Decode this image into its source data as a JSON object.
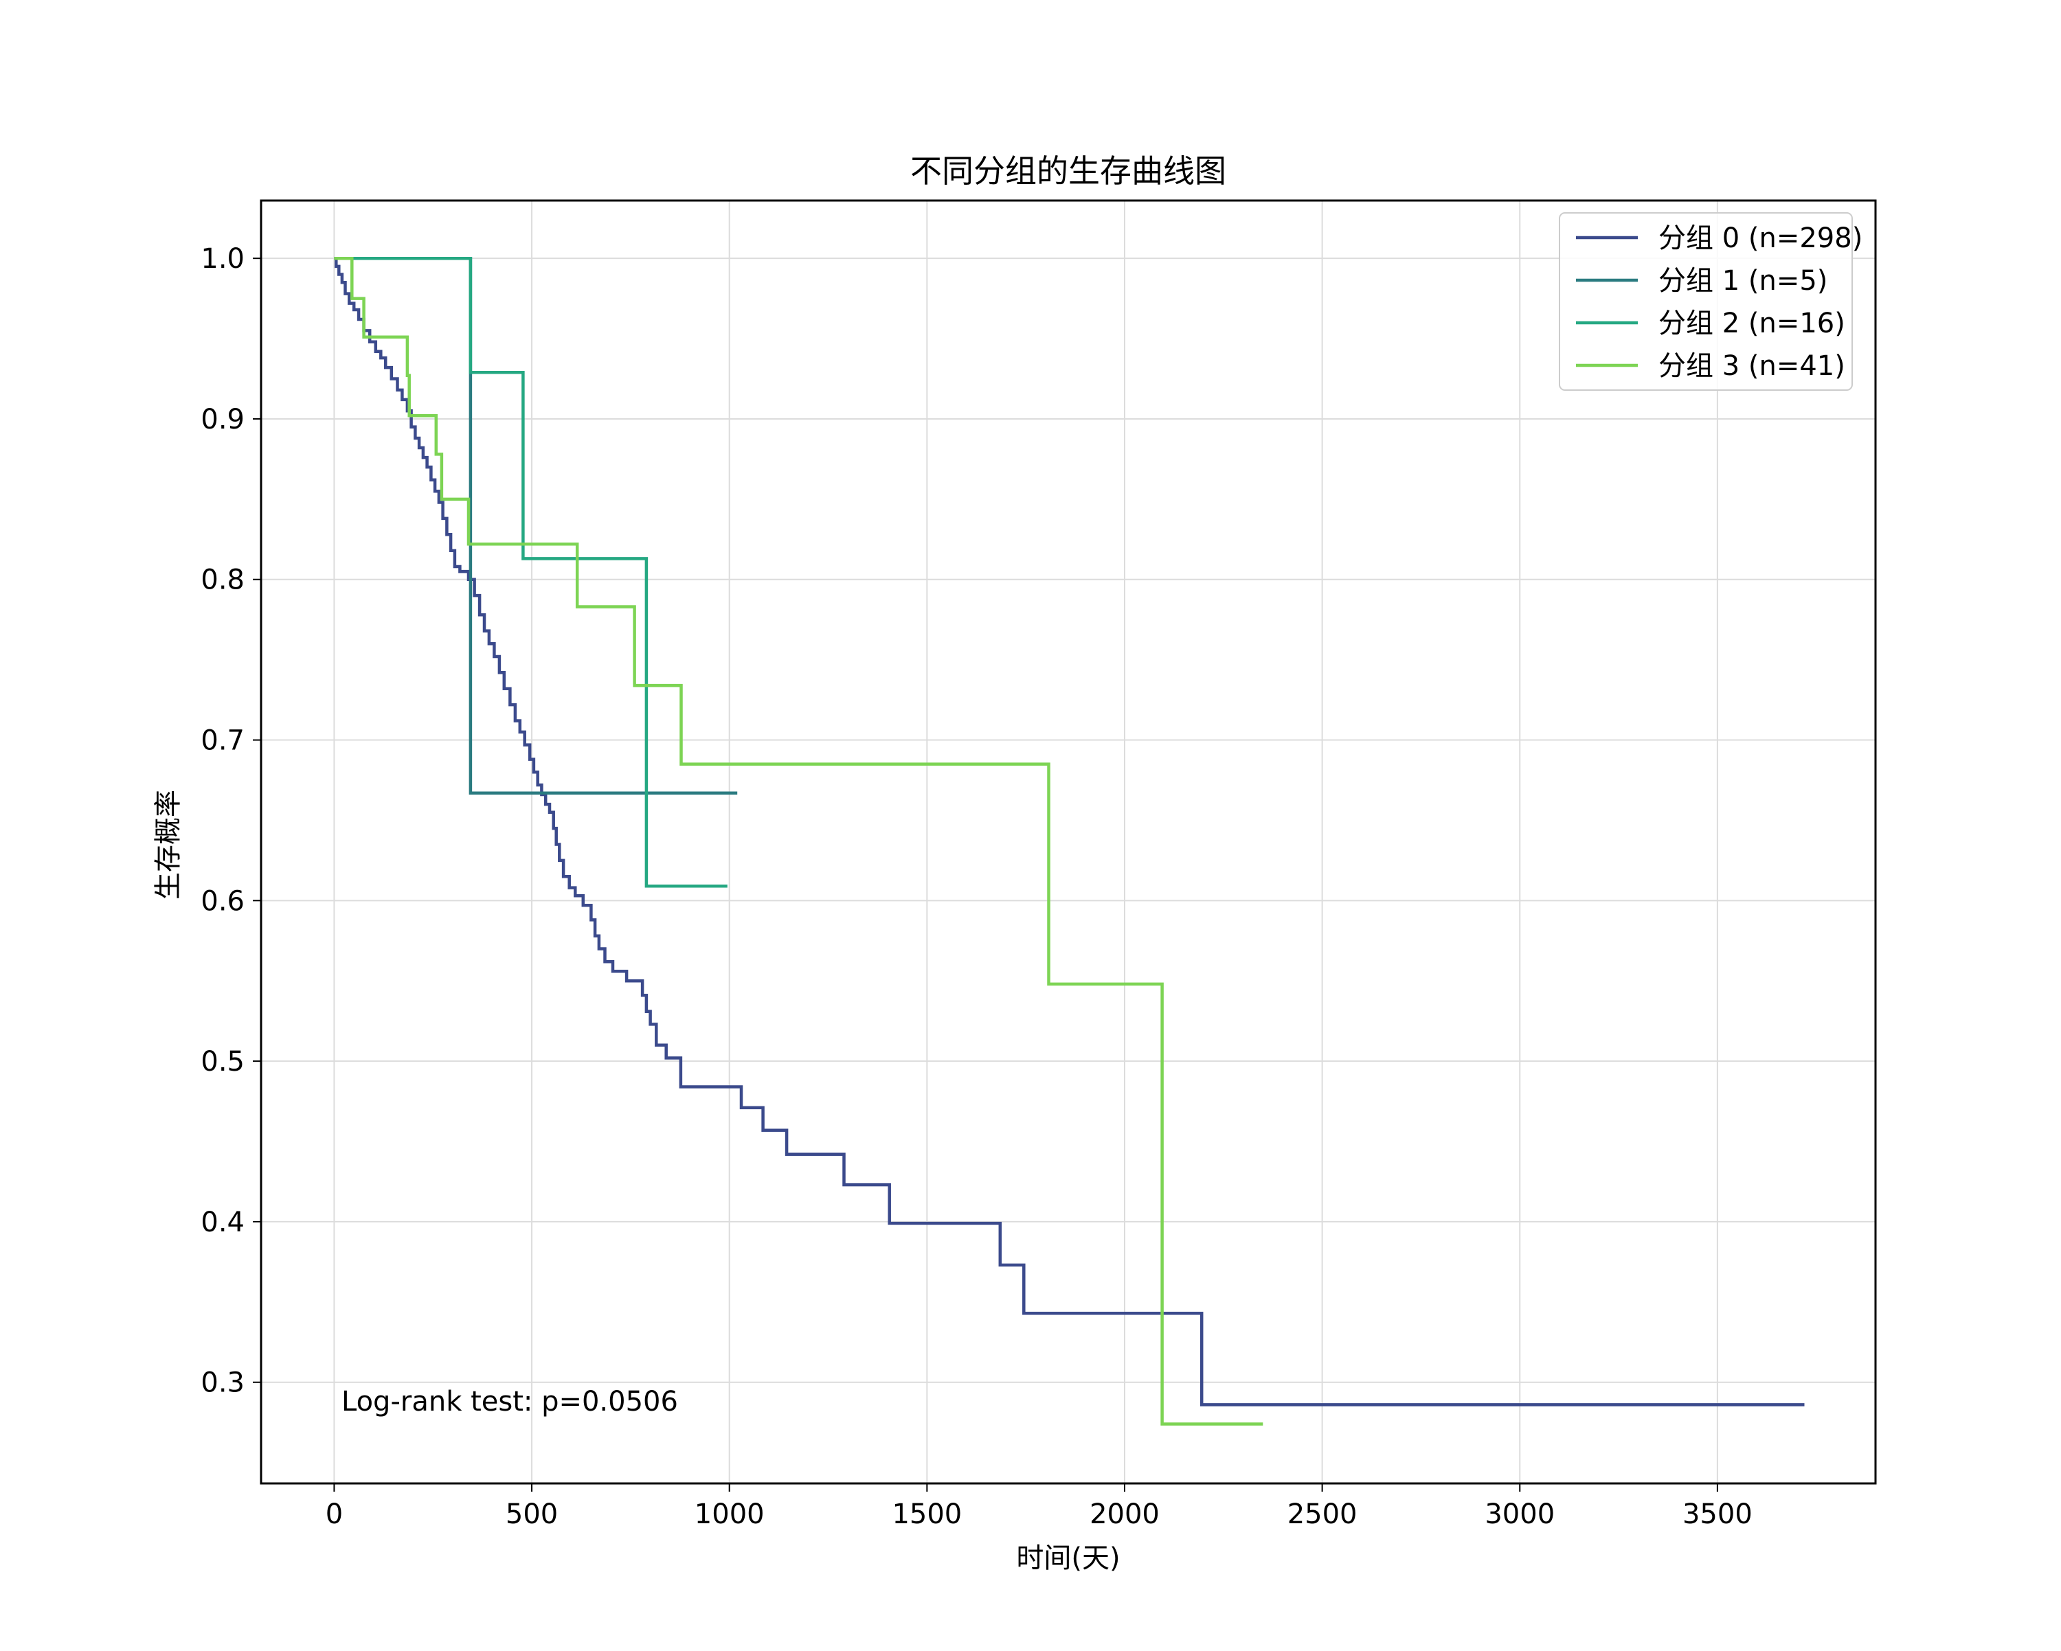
{
  "chart_data": {
    "type": "line",
    "title": "不同分组的生存曲线图",
    "xlabel": "时间(天)",
    "ylabel": "生存概率",
    "xlim": [
      -185,
      3900
    ],
    "ylim": [
      0.237,
      1.036
    ],
    "xticks": [
      0,
      500,
      1000,
      1500,
      2000,
      2500,
      3000,
      3500
    ],
    "yticks": [
      0.3,
      0.4,
      0.5,
      0.6,
      0.7,
      0.8,
      0.9,
      1.0
    ],
    "xtick_labels": [
      "0",
      "500",
      "1000",
      "1500",
      "2000",
      "2500",
      "3000",
      "3500"
    ],
    "ytick_labels": [
      "0.3",
      "0.4",
      "0.5",
      "0.6",
      "0.7",
      "0.8",
      "0.9",
      "1.0"
    ],
    "grid": true,
    "legend_position": "top-right",
    "annotation": "Log-rank test: p=0.0506",
    "series": [
      {
        "name": "分组 0 (n=298)",
        "color": "#3b4a8c",
        "steps": [
          [
            0,
            1.0
          ],
          [
            5,
            0.995
          ],
          [
            12,
            0.99
          ],
          [
            20,
            0.985
          ],
          [
            28,
            0.978
          ],
          [
            38,
            0.972
          ],
          [
            50,
            0.968
          ],
          [
            62,
            0.962
          ],
          [
            75,
            0.955
          ],
          [
            90,
            0.948
          ],
          [
            105,
            0.942
          ],
          [
            118,
            0.938
          ],
          [
            130,
            0.932
          ],
          [
            145,
            0.925
          ],
          [
            160,
            0.918
          ],
          [
            172,
            0.912
          ],
          [
            185,
            0.905
          ],
          [
            195,
            0.895
          ],
          [
            205,
            0.888
          ],
          [
            215,
            0.882
          ],
          [
            225,
            0.876
          ],
          [
            235,
            0.87
          ],
          [
            245,
            0.862
          ],
          [
            255,
            0.855
          ],
          [
            265,
            0.848
          ],
          [
            275,
            0.838
          ],
          [
            285,
            0.828
          ],
          [
            295,
            0.818
          ],
          [
            305,
            0.808
          ],
          [
            318,
            0.805
          ],
          [
            340,
            0.8
          ],
          [
            355,
            0.79
          ],
          [
            368,
            0.778
          ],
          [
            380,
            0.768
          ],
          [
            392,
            0.76
          ],
          [
            405,
            0.752
          ],
          [
            418,
            0.742
          ],
          [
            430,
            0.732
          ],
          [
            445,
            0.722
          ],
          [
            458,
            0.712
          ],
          [
            470,
            0.705
          ],
          [
            482,
            0.697
          ],
          [
            495,
            0.688
          ],
          [
            505,
            0.68
          ],
          [
            515,
            0.672
          ],
          [
            525,
            0.666
          ],
          [
            535,
            0.66
          ],
          [
            545,
            0.655
          ],
          [
            555,
            0.645
          ],
          [
            562,
            0.635
          ],
          [
            570,
            0.625
          ],
          [
            580,
            0.615
          ],
          [
            595,
            0.608
          ],
          [
            610,
            0.603
          ],
          [
            630,
            0.597
          ],
          [
            650,
            0.588
          ],
          [
            660,
            0.578
          ],
          [
            670,
            0.57
          ],
          [
            685,
            0.562
          ],
          [
            705,
            0.556
          ],
          [
            740,
            0.55
          ],
          [
            780,
            0.541
          ],
          [
            790,
            0.531
          ],
          [
            800,
            0.523
          ],
          [
            815,
            0.51
          ],
          [
            840,
            0.502
          ],
          [
            877,
            0.484
          ],
          [
            1030,
            0.471
          ],
          [
            1085,
            0.457
          ],
          [
            1145,
            0.442
          ],
          [
            1290,
            0.423
          ],
          [
            1405,
            0.399
          ],
          [
            1685,
            0.373
          ],
          [
            1745,
            0.343
          ],
          [
            2195,
            0.286
          ],
          [
            3720,
            0.286
          ]
        ]
      },
      {
        "name": "分组 1 (n=5)",
        "color": "#2a7b80",
        "steps": [
          [
            0,
            1.0
          ],
          [
            345,
            0.667
          ],
          [
            1020,
            0.667
          ]
        ]
      },
      {
        "name": "分组 2 (n=16)",
        "color": "#25a882",
        "steps": [
          [
            0,
            1.0
          ],
          [
            345,
            0.929
          ],
          [
            478,
            0.813
          ],
          [
            790,
            0.609
          ],
          [
            995,
            0.609
          ]
        ]
      },
      {
        "name": "分组 3 (n=41)",
        "color": "#7dd454",
        "steps": [
          [
            0,
            1.0
          ],
          [
            45,
            0.975
          ],
          [
            75,
            0.951
          ],
          [
            185,
            0.927
          ],
          [
            190,
            0.902
          ],
          [
            258,
            0.878
          ],
          [
            272,
            0.85
          ],
          [
            340,
            0.822
          ],
          [
            615,
            0.783
          ],
          [
            760,
            0.734
          ],
          [
            878,
            0.685
          ],
          [
            1808,
            0.548
          ],
          [
            2095,
            0.274
          ],
          [
            2350,
            0.274
          ]
        ]
      }
    ]
  }
}
